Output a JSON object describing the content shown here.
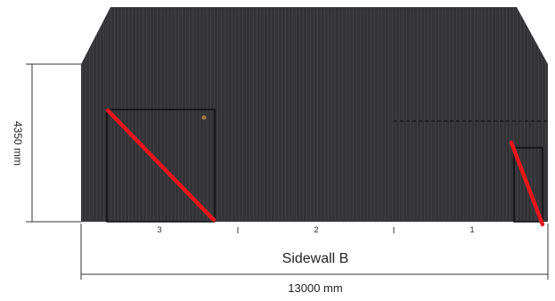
{
  "drawing": {
    "wall_name": "Sidewall B",
    "height_label": "4350 mm",
    "width_label": "13000 mm",
    "bays": [
      "3",
      "2",
      "1"
    ]
  },
  "colors": {
    "cladding": "#343438",
    "cladding_rib": "#3e3e43",
    "door_outline": "#0e0e10",
    "opening_marker": "#e8161b",
    "dimension_line": "#333333",
    "handle": "#a07840"
  },
  "icons": {
    "opening_marker": "red-diagonal-stroke",
    "door_handle": "small-round-knob"
  }
}
